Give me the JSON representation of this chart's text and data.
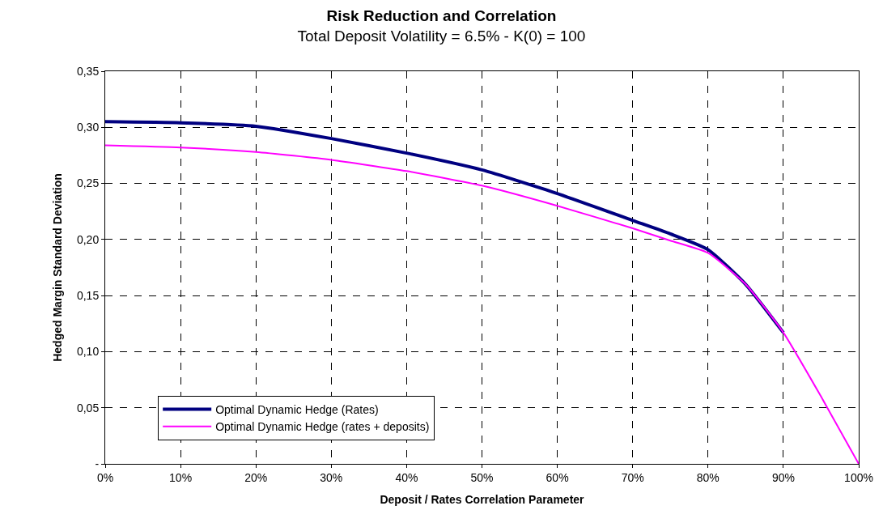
{
  "chart_data": {
    "type": "line",
    "title": "Risk Reduction and Correlation",
    "subtitle": "Total Deposit Volatility = 6.5% - K(0) = 100",
    "xlabel": "Deposit / Rates Correlation Parameter",
    "ylabel": "Hedged Margin Standard Deviation",
    "x": [
      0,
      10,
      20,
      30,
      40,
      50,
      60,
      70,
      75,
      80,
      85,
      90,
      95,
      100
    ],
    "series": [
      {
        "name": "Optimal Dynamic Hedge (Rates)",
        "color": "#000080",
        "values": [
          0.305,
          0.304,
          0.301,
          0.29,
          0.277,
          0.262,
          0.241,
          0.217,
          0.205,
          0.191,
          0.16,
          0.117,
          null,
          null
        ]
      },
      {
        "name": "Optimal Dynamic Hedge (rates + deposits)",
        "color": "#ff00ff",
        "values": [
          0.284,
          0.282,
          0.278,
          0.271,
          0.261,
          0.248,
          0.23,
          0.21,
          0.199,
          0.188,
          0.16,
          0.117,
          0.06,
          0
        ]
      }
    ],
    "xlim": [
      0,
      100
    ],
    "xticks": [
      {
        "value": 0,
        "label": "0%"
      },
      {
        "value": 10,
        "label": "10%"
      },
      {
        "value": 20,
        "label": "20%"
      },
      {
        "value": 30,
        "label": "30%"
      },
      {
        "value": 40,
        "label": "40%"
      },
      {
        "value": 50,
        "label": "50%"
      },
      {
        "value": 60,
        "label": "60%"
      },
      {
        "value": 70,
        "label": "70%"
      },
      {
        "value": 80,
        "label": "80%"
      },
      {
        "value": 90,
        "label": "90%"
      },
      {
        "value": 100,
        "label": "100%"
      }
    ],
    "ylim": [
      0,
      0.35
    ],
    "yticks": [
      {
        "value": 0,
        "label": "-"
      },
      {
        "value": 0.05,
        "label": "0,05"
      },
      {
        "value": 0.1,
        "label": "0,10"
      },
      {
        "value": 0.15,
        "label": "0,15"
      },
      {
        "value": 0.2,
        "label": "0,20"
      },
      {
        "value": 0.25,
        "label": "0,25"
      },
      {
        "value": 0.3,
        "label": "0,30"
      },
      {
        "value": 0.35,
        "label": "0,35"
      }
    ],
    "grid": true,
    "legend": "bottom left",
    "line_style": "solid",
    "marker": "none"
  }
}
